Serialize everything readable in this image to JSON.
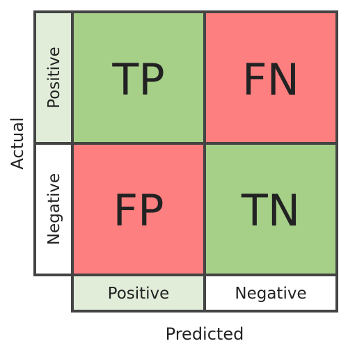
{
  "axes": {
    "x_title": "Predicted",
    "y_title": "Actual"
  },
  "columns": [
    {
      "label": "Positive",
      "fill": "#e1edd9"
    },
    {
      "label": "Negative",
      "fill": "#ffffff"
    }
  ],
  "rows": [
    {
      "label": "Positive",
      "fill": "#e1edd9"
    },
    {
      "label": "Negative",
      "fill": "#ffffff"
    }
  ],
  "cells": [
    [
      {
        "label": "TP",
        "fill": "#a6cf88"
      },
      {
        "label": "FN",
        "fill": "#fe7f7f"
      }
    ],
    [
      {
        "label": "FP",
        "fill": "#fe7f7f"
      },
      {
        "label": "TN",
        "fill": "#a6cf88"
      }
    ]
  ],
  "colors": {
    "border": "#444444",
    "correct": "#a6cf88",
    "incorrect": "#fe7f7f",
    "positive_header": "#e1edd9"
  }
}
